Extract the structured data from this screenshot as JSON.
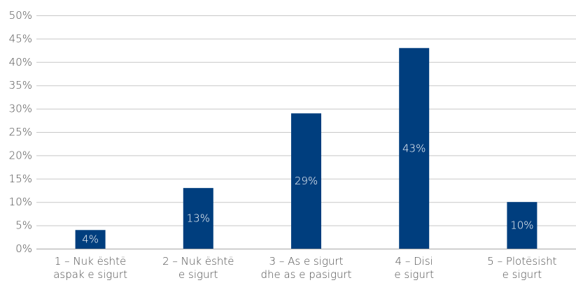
{
  "chart_data": {
    "type": "bar",
    "categories": [
      [
        "1 – Nuk është",
        "aspak e sigurt"
      ],
      [
        "2 – Nuk është",
        "e sigurt"
      ],
      [
        "3 – As e sigurt",
        "dhe as e pasigurt"
      ],
      [
        "4 – Disi",
        "e sigurt"
      ],
      [
        "5 – Plotësisht",
        "e sigurt"
      ]
    ],
    "values": [
      4,
      13,
      29,
      43,
      10
    ],
    "data_labels": [
      "4%",
      "13%",
      "29%",
      "43%",
      "10%"
    ],
    "ylim": [
      0,
      50
    ],
    "yticks": [
      "0%",
      "5%",
      "10%",
      "15%",
      "20%",
      "25%",
      "30%",
      "35%",
      "40%",
      "45%",
      "50%"
    ],
    "ytick_values": [
      0,
      5,
      10,
      15,
      20,
      25,
      30,
      35,
      40,
      45,
      50
    ],
    "title": "",
    "xlabel": "",
    "ylabel": "",
    "grid": true,
    "legend": "none",
    "colors": {
      "bar": "#003e7e",
      "grid": "#c8c8c8",
      "axis": "#a6a6a6",
      "text": "#4d4d4d",
      "label": "#ffffff"
    }
  }
}
